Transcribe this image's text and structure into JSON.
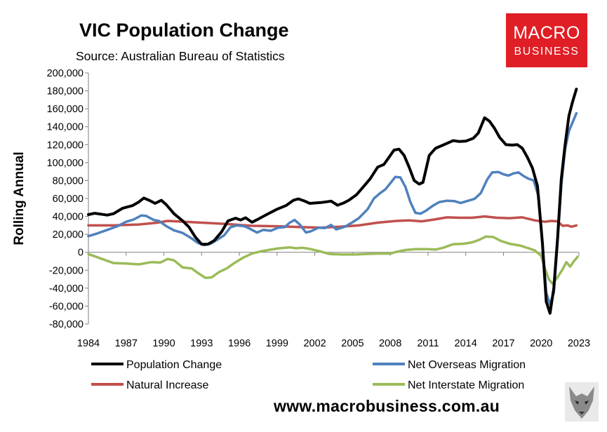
{
  "chart_data": {
    "type": "line",
    "title": "VIC Population Change",
    "subtitle": "Source: Australian Bureau of Statistics",
    "ylabel": "Rolling Annual",
    "xlabel": "",
    "ylim": [
      -80000,
      200000
    ],
    "xlim": [
      1984,
      2023
    ],
    "y_ticks": [
      "200,000",
      "180,000",
      "160,000",
      "140,000",
      "120,000",
      "100,000",
      "80,000",
      "60,000",
      "40,000",
      "20,000",
      "0",
      "-20,000",
      "-40,000",
      "-60,000",
      "-80,000"
    ],
    "x_ticks": [
      "1984",
      "1987",
      "1990",
      "1993",
      "1996",
      "1999",
      "2002",
      "2005",
      "2008",
      "2011",
      "2014",
      "2017",
      "2020",
      "2023"
    ],
    "grid": "none",
    "legend_position": "bottom",
    "series": [
      {
        "name": "Population Change",
        "color": "#000000",
        "points": [
          [
            1984,
            42000
          ],
          [
            1984.5,
            43500
          ],
          [
            1985.5,
            41500
          ],
          [
            1986,
            43000
          ],
          [
            1986.7,
            49000
          ],
          [
            1987.5,
            52000
          ],
          [
            1988,
            56000
          ],
          [
            1988.4,
            60500
          ],
          [
            1988.9,
            57500
          ],
          [
            1989.3,
            54500
          ],
          [
            1989.8,
            58000
          ],
          [
            1990.2,
            53000
          ],
          [
            1990.8,
            43000
          ],
          [
            1991.5,
            35000
          ],
          [
            1992,
            28000
          ],
          [
            1992.5,
            17000
          ],
          [
            1993,
            9000
          ],
          [
            1993.5,
            9000
          ],
          [
            1994,
            13000
          ],
          [
            1994.6,
            23000
          ],
          [
            1995.1,
            35000
          ],
          [
            1995.7,
            38000
          ],
          [
            1996.1,
            36000
          ],
          [
            1996.5,
            38500
          ],
          [
            1997,
            33500
          ],
          [
            1997.5,
            37000
          ],
          [
            1998.3,
            43000
          ],
          [
            1999,
            48000
          ],
          [
            1999.7,
            52000
          ],
          [
            2000.3,
            58000
          ],
          [
            2000.7,
            59500
          ],
          [
            2001.2,
            57000
          ],
          [
            2001.6,
            54500
          ],
          [
            2002.5,
            55500
          ],
          [
            2003.3,
            57000
          ],
          [
            2003.8,
            52500
          ],
          [
            2004.3,
            55000
          ],
          [
            2004.7,
            58000
          ],
          [
            2005.3,
            64000
          ],
          [
            2005.8,
            72000
          ],
          [
            2006.4,
            82000
          ],
          [
            2007,
            95000
          ],
          [
            2007.5,
            98000
          ],
          [
            2008,
            108000
          ],
          [
            2008.3,
            114000
          ],
          [
            2008.7,
            115000
          ],
          [
            2009.1,
            108000
          ],
          [
            2009.5,
            95000
          ],
          [
            2009.9,
            80000
          ],
          [
            2010.3,
            76000
          ],
          [
            2010.6,
            78000
          ],
          [
            2011.1,
            108000
          ],
          [
            2011.6,
            116000
          ],
          [
            2012.2,
            119500
          ],
          [
            2012.6,
            122000
          ],
          [
            2013,
            124500
          ],
          [
            2013.5,
            123500
          ],
          [
            2014,
            124000
          ],
          [
            2014.6,
            127000
          ],
          [
            2015,
            133000
          ],
          [
            2015.5,
            150000
          ],
          [
            2015.9,
            146000
          ],
          [
            2016.3,
            138000
          ],
          [
            2016.7,
            128000
          ],
          [
            2017.2,
            120000
          ],
          [
            2017.7,
            119500
          ],
          [
            2018.1,
            120000
          ],
          [
            2018.5,
            116000
          ],
          [
            2018.9,
            106000
          ],
          [
            2019.3,
            94000
          ],
          [
            2019.7,
            74000
          ],
          [
            2020.1,
            10000
          ],
          [
            2020.4,
            -55000
          ],
          [
            2020.7,
            -68000
          ],
          [
            2021.0,
            -40000
          ],
          [
            2021.3,
            15000
          ],
          [
            2021.6,
            82000
          ],
          [
            2021.9,
            120000
          ],
          [
            2022.2,
            152000
          ],
          [
            2022.5,
            168000
          ],
          [
            2022.8,
            182000
          ]
        ]
      },
      {
        "name": "Net Overseas Migration",
        "color": "#4f81bd",
        "points": [
          [
            1984,
            18000
          ],
          [
            1984.7,
            21000
          ],
          [
            1985.5,
            25000
          ],
          [
            1986.3,
            29000
          ],
          [
            1987,
            34000
          ],
          [
            1987.6,
            36500
          ],
          [
            1988.2,
            41000
          ],
          [
            1988.6,
            40500
          ],
          [
            1989.2,
            36000
          ],
          [
            1989.6,
            35000
          ],
          [
            1990.2,
            29000
          ],
          [
            1990.8,
            24500
          ],
          [
            1991.5,
            21500
          ],
          [
            1992.2,
            15500
          ],
          [
            1992.7,
            10500
          ],
          [
            1993.2,
            8000
          ],
          [
            1993.7,
            9500
          ],
          [
            1994.3,
            14500
          ],
          [
            1994.8,
            19000
          ],
          [
            1995.3,
            28000
          ],
          [
            1995.8,
            30000
          ],
          [
            1996.4,
            29000
          ],
          [
            1996.8,
            26500
          ],
          [
            1997.4,
            22000
          ],
          [
            1997.9,
            25000
          ],
          [
            1998.5,
            24000
          ],
          [
            1999.1,
            27500
          ],
          [
            1999.6,
            28000
          ],
          [
            2000,
            33000
          ],
          [
            2000.4,
            36000
          ],
          [
            2000.8,
            31000
          ],
          [
            2001.3,
            22000
          ],
          [
            2001.7,
            23500
          ],
          [
            2002.3,
            27500
          ],
          [
            2002.8,
            27000
          ],
          [
            2003.3,
            30500
          ],
          [
            2003.7,
            25500
          ],
          [
            2004.4,
            28500
          ],
          [
            2005,
            33500
          ],
          [
            2005.5,
            38000
          ],
          [
            2006.2,
            48000
          ],
          [
            2006.7,
            60000
          ],
          [
            2007.2,
            66000
          ],
          [
            2007.6,
            70000
          ],
          [
            2008,
            77000
          ],
          [
            2008.4,
            84000
          ],
          [
            2008.8,
            83500
          ],
          [
            2009.2,
            73000
          ],
          [
            2009.6,
            56000
          ],
          [
            2010,
            44000
          ],
          [
            2010.4,
            43000
          ],
          [
            2010.8,
            46000
          ],
          [
            2011.4,
            52000
          ],
          [
            2011.9,
            56000
          ],
          [
            2012.5,
            57500
          ],
          [
            2013.1,
            57000
          ],
          [
            2013.6,
            55000
          ],
          [
            2014.2,
            57500
          ],
          [
            2014.7,
            59500
          ],
          [
            2015.2,
            66000
          ],
          [
            2015.7,
            81000
          ],
          [
            2016.1,
            89000
          ],
          [
            2016.6,
            89500
          ],
          [
            2017,
            87000
          ],
          [
            2017.4,
            85500
          ],
          [
            2017.8,
            88000
          ],
          [
            2018.2,
            89000
          ],
          [
            2018.6,
            85000
          ],
          [
            2019,
            82000
          ],
          [
            2019.4,
            80000
          ],
          [
            2019.8,
            62000
          ],
          [
            2020.1,
            10000
          ],
          [
            2020.4,
            -45000
          ],
          [
            2020.7,
            -58000
          ],
          [
            2021.0,
            -45000
          ],
          [
            2021.3,
            10000
          ],
          [
            2021.6,
            75000
          ],
          [
            2021.9,
            115000
          ],
          [
            2022.2,
            135000
          ],
          [
            2022.5,
            145000
          ],
          [
            2022.8,
            155000
          ]
        ]
      },
      {
        "name": "Natural Increase",
        "color": "#c0504d",
        "points": [
          [
            1984,
            30000
          ],
          [
            1986,
            30000
          ],
          [
            1988,
            31000
          ],
          [
            1989.5,
            33000
          ],
          [
            1990.3,
            35000
          ],
          [
            1991,
            34500
          ],
          [
            1993,
            33000
          ],
          [
            1995,
            31500
          ],
          [
            1997,
            29500
          ],
          [
            1999,
            29000
          ],
          [
            2001,
            28000
          ],
          [
            2002.5,
            27500
          ],
          [
            2004,
            28500
          ],
          [
            2005.5,
            30000
          ],
          [
            2007,
            33000
          ],
          [
            2008.5,
            35000
          ],
          [
            2009.5,
            35500
          ],
          [
            2010.5,
            34500
          ],
          [
            2011.5,
            36500
          ],
          [
            2012.5,
            39000
          ],
          [
            2013.5,
            38500
          ],
          [
            2014.5,
            38500
          ],
          [
            2015.5,
            40000
          ],
          [
            2016.5,
            38500
          ],
          [
            2017.5,
            38000
          ],
          [
            2018.5,
            39000
          ],
          [
            2019.5,
            35500
          ],
          [
            2020.3,
            34000
          ],
          [
            2020.8,
            35000
          ],
          [
            2021.3,
            34500
          ],
          [
            2021.7,
            29500
          ],
          [
            2022.1,
            30000
          ],
          [
            2022.4,
            28500
          ],
          [
            2022.8,
            30000
          ]
        ]
      },
      {
        "name": "Net Interstate Migration",
        "color": "#9bbb59",
        "points": [
          [
            1984,
            -2000
          ],
          [
            1985,
            -7000
          ],
          [
            1986,
            -12000
          ],
          [
            1987,
            -12500
          ],
          [
            1988,
            -13500
          ],
          [
            1989,
            -11000
          ],
          [
            1989.7,
            -11500
          ],
          [
            1990.3,
            -7500
          ],
          [
            1990.8,
            -9000
          ],
          [
            1991.5,
            -17000
          ],
          [
            1992.2,
            -18000
          ],
          [
            1992.8,
            -24000
          ],
          [
            1993.3,
            -28500
          ],
          [
            1993.8,
            -28000
          ],
          [
            1994.4,
            -22000
          ],
          [
            1995,
            -18000
          ],
          [
            1995.6,
            -12000
          ],
          [
            1996.3,
            -6000
          ],
          [
            1997,
            -1500
          ],
          [
            1997.7,
            1000
          ],
          [
            1998.5,
            3000
          ],
          [
            1999.2,
            4500
          ],
          [
            2000,
            5500
          ],
          [
            2000.5,
            4500
          ],
          [
            2001,
            5000
          ],
          [
            2001.5,
            4000
          ],
          [
            2002.3,
            1500
          ],
          [
            2003.2,
            -2000
          ],
          [
            2004.2,
            -2500
          ],
          [
            2005.2,
            -2500
          ],
          [
            2006,
            -2000
          ],
          [
            2007,
            -1500
          ],
          [
            2008,
            -1500
          ],
          [
            2008.5,
            500
          ],
          [
            2009.2,
            2500
          ],
          [
            2010,
            3500
          ],
          [
            2011,
            3500
          ],
          [
            2011.6,
            3000
          ],
          [
            2012.2,
            5000
          ],
          [
            2013,
            9000
          ],
          [
            2013.8,
            9500
          ],
          [
            2014.5,
            11000
          ],
          [
            2015.1,
            14000
          ],
          [
            2015.6,
            17500
          ],
          [
            2016.2,
            17000
          ],
          [
            2016.8,
            12500
          ],
          [
            2017.5,
            9500
          ],
          [
            2018.3,
            7500
          ],
          [
            2019,
            4500
          ],
          [
            2019.5,
            2000
          ],
          [
            2020,
            -4000
          ],
          [
            2020.3,
            -18000
          ],
          [
            2020.6,
            -30000
          ],
          [
            2020.9,
            -35000
          ],
          [
            2021.3,
            -28000
          ],
          [
            2021.7,
            -19000
          ],
          [
            2022,
            -11000
          ],
          [
            2022.3,
            -16000
          ],
          [
            2022.6,
            -10000
          ],
          [
            2022.9,
            -5000
          ]
        ]
      }
    ]
  },
  "branding": {
    "logo_line1": "MACRO",
    "logo_line2": "BUSINESS",
    "url": "www.macrobusiness.com.au",
    "logo_color": "#e01e25"
  }
}
